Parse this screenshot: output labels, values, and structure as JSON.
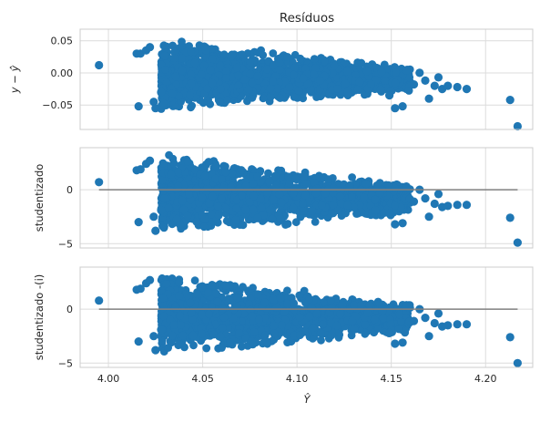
{
  "chart_data": {
    "type": "scatter",
    "title": "Resíduos",
    "xlabel": "Ŷ",
    "xlim": [
      3.985,
      4.225
    ],
    "xticks": [
      4.0,
      4.05,
      4.1,
      4.15,
      4.2
    ],
    "xtick_labels": [
      "4.00",
      "4.05",
      "4.10",
      "4.15",
      "4.20"
    ],
    "grid": true,
    "point_color": "#1f77b4",
    "zero_line_color": "#808080",
    "cloud_note": "dense cloud of several thousand points between x≈4.025 and x≈4.16; the listed points are the distinct points visible outside the dense cloud",
    "panels": [
      {
        "ylabel": "y − ŷ",
        "ylim": [
          -0.088,
          0.068
        ],
        "yticks": [
          -0.05,
          0.0,
          0.05
        ],
        "ytick_labels": [
          "−0.05",
          "0.00",
          "0.05"
        ],
        "zero_line": false,
        "cloud": {
          "x_start": 4.028,
          "x_end": 4.16,
          "upper_start": 0.055,
          "upper_end": 0.01,
          "lower_start": -0.06,
          "lower_end": -0.03
        },
        "points": [
          [
            3.995,
            0.012
          ],
          [
            4.015,
            0.03
          ],
          [
            4.017,
            0.03
          ],
          [
            4.016,
            -0.052
          ],
          [
            4.02,
            0.035
          ],
          [
            4.022,
            0.04
          ],
          [
            4.024,
            -0.045
          ],
          [
            4.025,
            -0.055
          ],
          [
            4.028,
            -0.03
          ],
          [
            4.165,
            0.0
          ],
          [
            4.168,
            -0.012
          ],
          [
            4.17,
            -0.04
          ],
          [
            4.173,
            -0.02
          ],
          [
            4.175,
            -0.007
          ],
          [
            4.177,
            -0.025
          ],
          [
            4.18,
            -0.02
          ],
          [
            4.185,
            -0.022
          ],
          [
            4.19,
            -0.025
          ],
          [
            4.152,
            -0.055
          ],
          [
            4.156,
            -0.052
          ],
          [
            4.149,
            -0.035
          ],
          [
            4.162,
            -0.018
          ],
          [
            4.158,
            0.004
          ],
          [
            4.213,
            -0.042
          ],
          [
            4.217,
            -0.083
          ]
        ]
      },
      {
        "ylabel": "studentizado",
        "ylim": [
          -5.4,
          3.9
        ],
        "yticks": [
          -5,
          0
        ],
        "ytick_labels": [
          "−5",
          "0"
        ],
        "zero_line": true,
        "cloud": {
          "x_start": 4.028,
          "x_end": 4.16,
          "upper_start": 3.4,
          "upper_end": 0.6,
          "lower_start": -4.3,
          "lower_end": -2.3
        },
        "points": [
          [
            3.995,
            0.7
          ],
          [
            4.015,
            1.8
          ],
          [
            4.017,
            1.9
          ],
          [
            4.016,
            -3.0
          ],
          [
            4.02,
            2.4
          ],
          [
            4.022,
            2.7
          ],
          [
            4.024,
            -2.5
          ],
          [
            4.025,
            -3.8
          ],
          [
            4.028,
            -1.9
          ],
          [
            4.165,
            0.0
          ],
          [
            4.168,
            -0.8
          ],
          [
            4.17,
            -2.5
          ],
          [
            4.173,
            -1.3
          ],
          [
            4.175,
            -0.4
          ],
          [
            4.177,
            -1.6
          ],
          [
            4.18,
            -1.5
          ],
          [
            4.185,
            -1.4
          ],
          [
            4.19,
            -1.4
          ],
          [
            4.152,
            -3.2
          ],
          [
            4.156,
            -3.1
          ],
          [
            4.149,
            -2.2
          ],
          [
            4.162,
            -1.1
          ],
          [
            4.158,
            0.3
          ],
          [
            4.213,
            -2.6
          ],
          [
            4.217,
            -4.9
          ]
        ]
      },
      {
        "ylabel": "studentizado -(i)",
        "ylim": [
          -5.4,
          3.9
        ],
        "yticks": [
          -5,
          0
        ],
        "ytick_labels": [
          "−5",
          "0"
        ],
        "zero_line": true,
        "cloud": {
          "x_start": 4.028,
          "x_end": 4.16,
          "upper_start": 3.4,
          "upper_end": 0.6,
          "lower_start": -4.3,
          "lower_end": -2.3
        },
        "points": [
          [
            3.995,
            0.8
          ],
          [
            4.015,
            1.8
          ],
          [
            4.017,
            1.9
          ],
          [
            4.016,
            -3.0
          ],
          [
            4.02,
            2.4
          ],
          [
            4.022,
            2.7
          ],
          [
            4.024,
            -2.5
          ],
          [
            4.025,
            -3.8
          ],
          [
            4.028,
            -1.9
          ],
          [
            4.165,
            0.0
          ],
          [
            4.168,
            -0.8
          ],
          [
            4.17,
            -2.5
          ],
          [
            4.173,
            -1.3
          ],
          [
            4.175,
            -0.4
          ],
          [
            4.177,
            -1.6
          ],
          [
            4.18,
            -1.5
          ],
          [
            4.185,
            -1.4
          ],
          [
            4.19,
            -1.4
          ],
          [
            4.152,
            -3.2
          ],
          [
            4.156,
            -3.1
          ],
          [
            4.149,
            -2.2
          ],
          [
            4.162,
            -1.1
          ],
          [
            4.158,
            0.3
          ],
          [
            4.213,
            -2.6
          ],
          [
            4.217,
            -5.0
          ]
        ]
      }
    ]
  }
}
